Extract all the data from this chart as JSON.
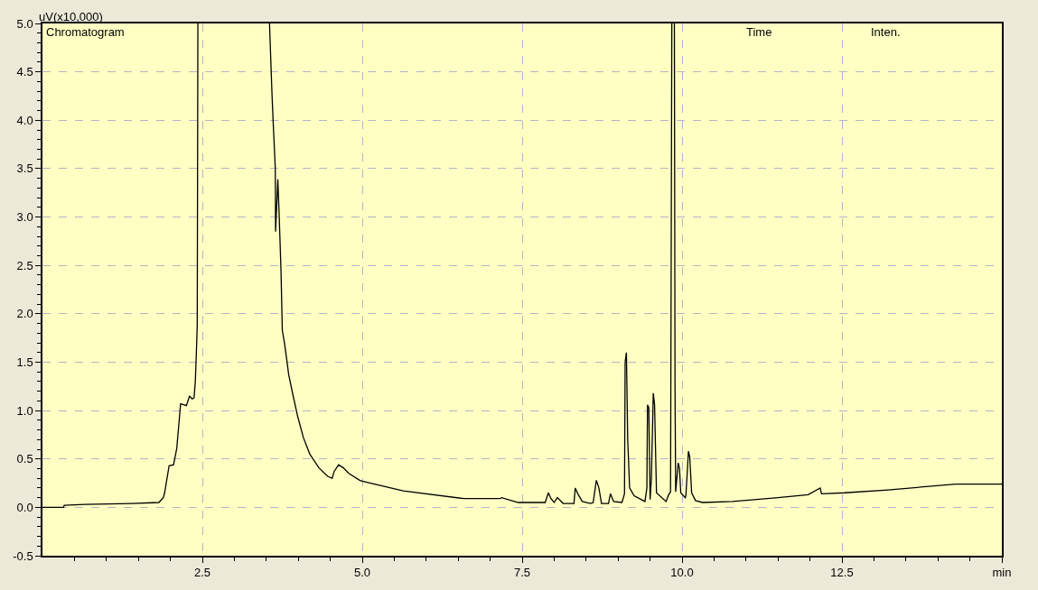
{
  "chart_data": {
    "type": "line",
    "ylabel": "uV(x10,000)",
    "annotations": [
      "Chromatogram",
      "Time",
      "Inten."
    ],
    "x": [
      0,
      0.33,
      0.34,
      0.66,
      1.39,
      1.82,
      1.89,
      1.91,
      1.96,
      1.98,
      2.05,
      2.08,
      2.1,
      2.13,
      2.16,
      2.21,
      2.25,
      2.3,
      2.34,
      2.37,
      2.39,
      2.41,
      2.42,
      2.43,
      3.0,
      3.55,
      3.57,
      3.59,
      3.61,
      3.64,
      3.645,
      3.68,
      3.7,
      3.73,
      3.75,
      3.79,
      3.85,
      3.92,
      3.99,
      4.08,
      4.18,
      4.32,
      4.46,
      4.53,
      4.56,
      4.63,
      4.7,
      4.79,
      4.96,
      5.0,
      5.64,
      6.59,
      7.15,
      7.18,
      7.44,
      7.86,
      7.91,
      7.95,
      8.0,
      8.05,
      8.14,
      8.31,
      8.33,
      8.37,
      8.44,
      8.57,
      8.61,
      8.66,
      8.7,
      8.74,
      8.85,
      8.88,
      8.93,
      9.06,
      9.1,
      9.11,
      9.13,
      9.15,
      9.18,
      9.25,
      9.42,
      9.45,
      9.46,
      9.48,
      9.5,
      9.52,
      9.55,
      9.57,
      9.6,
      9.75,
      9.79,
      9.82,
      9.84,
      9.86,
      9.88,
      9.89,
      9.9,
      9.94,
      9.96,
      9.98,
      10.05,
      10.06,
      10.1,
      10.12,
      10.15,
      10.21,
      10.32,
      10.79,
      11.5,
      11.97,
      12.16,
      12.18,
      12.54,
      13.22,
      14.28,
      15.0
    ],
    "series": [
      {
        "color": "#000000",
        "values": [
          0,
          0,
          0.02,
          0.03,
          0.04,
          0.05,
          0.1,
          0.15,
          0.35,
          0.43,
          0.44,
          0.54,
          0.61,
          0.84,
          1.07,
          1.06,
          1.05,
          1.15,
          1.12,
          1.13,
          1.3,
          1.67,
          1.89,
          5.0,
          null,
          5.0,
          4.62,
          4.25,
          3.94,
          3.51,
          2.85,
          3.39,
          3.04,
          2.44,
          1.83,
          1.67,
          1.37,
          1.15,
          0.94,
          0.72,
          0.55,
          0.41,
          0.32,
          0.3,
          0.37,
          0.44,
          0.41,
          0.35,
          0.28,
          0.27,
          0.17,
          0.09,
          0.09,
          0.1,
          0.05,
          0.05,
          0.15,
          0.09,
          0.05,
          0.1,
          0.04,
          0.04,
          0.2,
          0.14,
          0.06,
          0.04,
          0.05,
          0.28,
          0.2,
          0.04,
          0.04,
          0.14,
          0.06,
          0.05,
          0.14,
          1.5,
          1.6,
          0.71,
          0.2,
          0.12,
          0.06,
          0.2,
          1.06,
          1.03,
          0.08,
          0.29,
          1.18,
          1.06,
          0.15,
          0.06,
          0.13,
          0.16,
          5.0,
          null,
          5.0,
          1.24,
          0.16,
          0.46,
          0.4,
          0.15,
          0.1,
          0.12,
          0.58,
          0.52,
          0.15,
          0.07,
          0.05,
          0.06,
          0.1,
          0.13,
          0.2,
          0.14,
          0.15,
          0.18,
          0.24,
          0.24
        ]
      }
    ],
    "xlim": [
      0,
      15
    ],
    "xticks": [
      {
        "value": 0.5,
        "label": null
      },
      {
        "value": 1.0,
        "label": null
      },
      {
        "value": 1.5,
        "label": null
      },
      {
        "value": 2.0,
        "label": null
      },
      2.5,
      {
        "value": 3.0,
        "label": null
      },
      {
        "value": 3.5,
        "label": null
      },
      {
        "value": 4.0,
        "label": null
      },
      {
        "value": 4.5,
        "label": null
      },
      {
        "value": 5,
        "label": "5.0"
      },
      {
        "value": 5.5,
        "label": null
      },
      {
        "value": 6.0,
        "label": null
      },
      {
        "value": 6.5,
        "label": null
      },
      {
        "value": 7.0,
        "label": null
      },
      7.5,
      {
        "value": 8.0,
        "label": null
      },
      {
        "value": 8.5,
        "label": null
      },
      {
        "value": 9.0,
        "label": null
      },
      {
        "value": 9.5,
        "label": null
      },
      {
        "value": 10,
        "label": "10.0"
      },
      {
        "value": 10.5,
        "label": null
      },
      {
        "value": 11.0,
        "label": null
      },
      {
        "value": 11.5,
        "label": null
      },
      {
        "value": 12.0,
        "label": null
      },
      12.5,
      {
        "value": 13.0,
        "label": null
      },
      {
        "value": 13.5,
        "label": null
      },
      {
        "value": 14.0,
        "label": null
      },
      {
        "value": 14.5,
        "label": null
      },
      {
        "value": 15,
        "label": "min"
      }
    ],
    "ylim": [
      -0.5,
      5.0
    ],
    "yticks": [
      -0.5,
      {
        "value": -0.4,
        "label": null
      },
      {
        "value": -0.3,
        "label": null
      },
      {
        "value": -0.2,
        "label": null
      },
      {
        "value": -0.1,
        "label": null
      },
      {
        "value": 0,
        "label": "0.0"
      },
      {
        "value": 0.1,
        "label": null
      },
      {
        "value": 0.2,
        "label": null
      },
      {
        "value": 0.3,
        "label": null
      },
      {
        "value": 0.4,
        "label": null
      },
      0.5,
      {
        "value": 0.6,
        "label": null
      },
      {
        "value": 0.7,
        "label": null
      },
      {
        "value": 0.8,
        "label": null
      },
      {
        "value": 0.9,
        "label": null
      },
      {
        "value": 1,
        "label": "1.0"
      },
      {
        "value": 1.1,
        "label": null
      },
      {
        "value": 1.2,
        "label": null
      },
      {
        "value": 1.3,
        "label": null
      },
      {
        "value": 1.4,
        "label": null
      },
      1.5,
      {
        "value": 1.6,
        "label": null
      },
      {
        "value": 1.7,
        "label": null
      },
      {
        "value": 1.8,
        "label": null
      },
      {
        "value": 1.9,
        "label": null
      },
      {
        "value": 2,
        "label": "2.0"
      },
      {
        "value": 2.1,
        "label": null
      },
      {
        "value": 2.2,
        "label": null
      },
      {
        "value": 2.3,
        "label": null
      },
      {
        "value": 2.4,
        "label": null
      },
      2.5,
      {
        "value": 2.6,
        "label": null
      },
      {
        "value": 2.7,
        "label": null
      },
      {
        "value": 2.8,
        "label": null
      },
      {
        "value": 2.9,
        "label": null
      },
      {
        "value": 3,
        "label": "3.0"
      },
      {
        "value": 3.1,
        "label": null
      },
      {
        "value": 3.2,
        "label": null
      },
      {
        "value": 3.3,
        "label": null
      },
      {
        "value": 3.4,
        "label": null
      },
      3.5,
      {
        "value": 3.6,
        "label": null
      },
      {
        "value": 3.7,
        "label": null
      },
      {
        "value": 3.8,
        "label": null
      },
      {
        "value": 3.9,
        "label": null
      },
      {
        "value": 4,
        "label": "4.0"
      },
      {
        "value": 4.1,
        "label": null
      },
      {
        "value": 4.2,
        "label": null
      },
      {
        "value": 4.3,
        "label": null
      },
      {
        "value": 4.4,
        "label": null
      },
      4.5,
      {
        "value": 4.6,
        "label": null
      },
      {
        "value": 4.7,
        "label": null
      },
      {
        "value": 4.8,
        "label": null
      },
      {
        "value": 4.9,
        "label": null
      },
      {
        "value": 5,
        "label": "5.0"
      }
    ],
    "grid": true,
    "marker": "none",
    "line_style": "solid"
  }
}
